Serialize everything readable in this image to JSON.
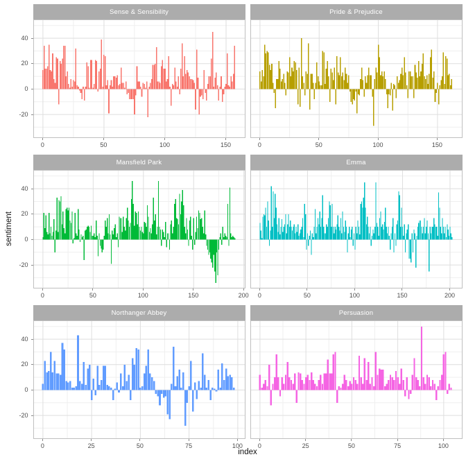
{
  "figure": {
    "x_axis_label": "index",
    "y_axis_label": "sentiment"
  },
  "style": {
    "background": "#FFFFFF",
    "strip_bg": "#ACACAC",
    "strip_text_color": "#FFFFFF",
    "panel_bg": "#FFFFFF",
    "panel_border": "#BFBFBF",
    "grid_major": "#DEDEDE",
    "grid_minor": "#EFEFEF",
    "tick_mark_color": "#8A8A8A",
    "tick_label_color": "#4D4D4D"
  },
  "chart_data": {
    "type": "bar",
    "title": "",
    "xlabel": "index",
    "ylabel": "sentiment",
    "ylim": [
      -38.5,
      54.8
    ],
    "y_ticks": [
      -20,
      0,
      20,
      40
    ],
    "grid": true,
    "legend": false,
    "facet_layout": "3 rows x 2 cols, free x scales, shared y scale",
    "facets": [
      {
        "title": "Sense & Sensibility",
        "color": "#F8766D",
        "x_ticks": [
          0,
          50,
          100,
          150
        ],
        "values": [
          15,
          34,
          16,
          16,
          18,
          35,
          15,
          14,
          28,
          8,
          5,
          25,
          24,
          -12,
          22,
          20,
          24,
          34,
          34,
          10,
          14,
          4,
          1,
          8,
          2,
          7,
          6,
          32,
          3,
          2,
          -1,
          -3,
          -8,
          2,
          -9,
          2,
          21,
          18,
          1,
          23,
          23,
          1,
          4,
          23,
          22,
          -2,
          14,
          16,
          39,
          2,
          27,
          26,
          3,
          7,
          -19,
          3,
          7,
          2,
          10,
          10,
          9,
          11,
          3,
          4,
          17,
          5,
          5,
          1,
          6,
          -4,
          -3,
          -8,
          -8,
          -8,
          -8,
          -20,
          -5,
          18,
          6,
          6,
          2,
          -6,
          5,
          4,
          1,
          6,
          -22,
          2,
          5,
          8,
          19,
          19,
          20,
          33,
          6,
          6,
          5,
          18,
          23,
          16,
          16,
          6,
          8,
          26,
          2,
          -13,
          4,
          3,
          17,
          6,
          2,
          10,
          -4,
          16,
          36,
          10,
          26,
          12,
          15,
          13,
          10,
          8,
          8,
          7,
          5,
          -16,
          31,
          9,
          -20,
          -6,
          -5,
          -8,
          15,
          -3,
          -9,
          4,
          10,
          10,
          24,
          45,
          2,
          9,
          13,
          3,
          -9,
          2,
          10,
          -10,
          -4,
          2,
          4,
          28,
          3,
          2,
          10,
          6,
          12,
          34
        ]
      },
      {
        "title": "Pride & Prejudice",
        "color": "#B79F00",
        "x_ticks": [
          0,
          50,
          100,
          150
        ],
        "values": [
          14,
          6,
          15,
          10,
          35,
          28,
          30,
          29,
          19,
          15,
          20,
          5,
          -3,
          -15,
          8,
          8,
          22,
          16,
          6,
          8,
          12,
          5,
          -5,
          14,
          13,
          25,
          10,
          17,
          14,
          22,
          21,
          15,
          -12,
          17,
          -14,
          40,
          10,
          5,
          -5,
          14,
          12,
          36,
          -16,
          12,
          12,
          5,
          -8,
          5,
          21,
          10,
          6,
          3,
          3,
          30,
          29,
          4,
          16,
          22,
          10,
          -10,
          16,
          13,
          7,
          17,
          -12,
          26,
          13,
          11,
          25,
          10,
          13,
          7,
          17,
          12,
          5,
          11,
          -2,
          -10,
          -12,
          -8,
          -9,
          -2,
          -19,
          -4,
          -5,
          8,
          17,
          7,
          -6,
          10,
          5,
          11,
          17,
          11,
          11,
          -6,
          -29,
          8,
          17,
          13,
          35,
          25,
          11,
          14,
          10,
          14,
          8,
          -4,
          -15,
          -4,
          -5,
          5,
          -17,
          4,
          3,
          -7,
          10,
          5,
          7,
          12,
          17,
          11,
          25,
          13,
          3,
          -7,
          14,
          14,
          10,
          10,
          -7,
          19,
          13,
          9,
          22,
          10,
          14,
          20,
          28,
          10,
          8,
          11,
          4,
          12,
          25,
          31,
          9,
          14,
          -10,
          -3,
          5,
          -12,
          3,
          7,
          10,
          29,
          4,
          26,
          24,
          11,
          12,
          3,
          8
        ]
      },
      {
        "title": "Mansfield Park",
        "color": "#00BA38",
        "x_ticks": [
          0,
          50,
          100,
          150,
          200
        ],
        "values": [
          2,
          21,
          9,
          19,
          6,
          4,
          21,
          5,
          10,
          3,
          6,
          16,
          -10,
          7,
          33,
          6,
          31,
          30,
          34,
          12,
          22,
          9,
          5,
          24,
          25,
          23,
          25,
          15,
          13,
          22,
          -3,
          1,
          21,
          5,
          3,
          24,
          8,
          -2,
          4,
          2,
          3,
          -16,
          7,
          8,
          10,
          11,
          10,
          6,
          11,
          3,
          3,
          5,
          2,
          15,
          3,
          -13,
          5,
          -5,
          -7,
          -10,
          -8,
          3,
          15,
          10,
          17,
          5,
          20,
          4,
          -19,
          7,
          4,
          9,
          12,
          2,
          5,
          -6,
          18,
          17,
          17,
          6,
          18,
          10,
          7,
          17,
          25,
          15,
          10,
          13,
          32,
          46,
          28,
          11,
          22,
          21,
          12,
          22,
          10,
          7,
          10,
          6,
          5,
          14,
          13,
          10,
          27,
          18,
          6,
          9,
          5,
          12,
          33,
          15,
          20,
          4,
          10,
          46,
          10,
          8,
          -5,
          8,
          6,
          2,
          14,
          -6,
          5,
          5,
          -8,
          12,
          15,
          5,
          10,
          28,
          32,
          17,
          16,
          12,
          36,
          20,
          30,
          39,
          27,
          10,
          5,
          17,
          8,
          -5,
          15,
          18,
          3,
          -8,
          17,
          -4,
          6,
          18,
          9,
          23,
          21,
          16,
          17,
          10,
          5,
          23,
          4,
          -5,
          -8,
          -12,
          -10,
          -15,
          -18,
          -22,
          -12,
          -25,
          -34,
          -10,
          -28,
          -8,
          2,
          5,
          -4,
          10,
          2,
          5,
          3,
          2,
          28,
          -5,
          41,
          5,
          2,
          3,
          2,
          1
        ]
      },
      {
        "title": "Emma",
        "color": "#00BFC4",
        "x_ticks": [
          0,
          50,
          100,
          150,
          200
        ],
        "values": [
          13,
          7,
          1,
          18,
          20,
          19,
          25,
          10,
          30,
          15,
          -5,
          7,
          42,
          10,
          38,
          17,
          36,
          25,
          12,
          6,
          17,
          4,
          10,
          16,
          6,
          10,
          12,
          20,
          5,
          12,
          20,
          10,
          15,
          10,
          7,
          10,
          12,
          5,
          10,
          6,
          12,
          3,
          5,
          8,
          10,
          17,
          2,
          28,
          20,
          -8,
          5,
          -5,
          3,
          7,
          -12,
          5,
          2,
          10,
          24,
          5,
          10,
          17,
          12,
          22,
          10,
          17,
          35,
          10,
          5,
          5,
          12,
          10,
          17,
          30,
          27,
          10,
          28,
          10,
          5,
          10,
          8,
          12,
          19,
          10,
          7,
          17,
          5,
          22,
          10,
          6,
          15,
          10,
          -10,
          5,
          10,
          2,
          8,
          10,
          -5,
          5,
          -8,
          10,
          5,
          15,
          10,
          4,
          28,
          30,
          25,
          33,
          45,
          25,
          12,
          18,
          10,
          5,
          10,
          -5,
          3,
          8,
          5,
          10,
          45,
          13,
          10,
          3,
          17,
          22,
          10,
          12,
          8,
          14,
          25,
          10,
          5,
          10,
          3,
          -8,
          5,
          10,
          17,
          -10,
          5,
          -5,
          12,
          15,
          38,
          35,
          10,
          25,
          10,
          3,
          12,
          -10,
          5,
          8,
          12,
          -15,
          -15,
          -18,
          5,
          -10,
          8,
          5,
          -22,
          3,
          10,
          13,
          15,
          15,
          10,
          5,
          10,
          17,
          5,
          10,
          15,
          5,
          -25,
          10,
          5,
          10,
          10,
          17,
          12,
          10,
          10,
          3,
          37,
          25,
          10,
          5,
          17,
          10,
          5,
          10,
          2,
          12,
          8,
          3,
          10,
          5,
          2
        ]
      },
      {
        "title": "Northanger Abbey",
        "color": "#619CFF",
        "x_ticks": [
          0,
          25,
          50,
          75,
          100
        ],
        "values": [
          5,
          23,
          14,
          15,
          30,
          14,
          23,
          13,
          13,
          12,
          37,
          32,
          7,
          6,
          7,
          2,
          2,
          3,
          43,
          7,
          5,
          22,
          4,
          17,
          20,
          -8,
          9,
          -4,
          19,
          4,
          8,
          19,
          19,
          4,
          3,
          2,
          -8,
          1,
          6,
          -2,
          13,
          3,
          20,
          7,
          12,
          -8,
          25,
          20,
          33,
          32,
          2,
          3,
          13,
          19,
          32,
          13,
          10,
          7,
          -3,
          -5,
          -12,
          -3,
          -6,
          -5,
          -19,
          -23,
          5,
          34,
          3,
          11,
          16,
          2,
          14,
          -28,
          -10,
          3,
          23,
          -17,
          6,
          -7,
          7,
          2,
          29,
          12,
          2,
          8,
          -8,
          2,
          1,
          -1,
          16,
          2,
          21,
          8,
          17,
          11,
          12,
          10,
          2
        ]
      },
      {
        "title": "Persuasion",
        "color": "#F564E3",
        "x_ticks": [
          0,
          25,
          50,
          75,
          100
        ],
        "values": [
          12,
          2,
          5,
          8,
          3,
          20,
          -12,
          5,
          10,
          28,
          10,
          -5,
          10,
          5,
          12,
          22,
          10,
          8,
          5,
          13,
          -10,
          14,
          13,
          8,
          5,
          10,
          12,
          8,
          14,
          8,
          5,
          3,
          8,
          12,
          5,
          13,
          13,
          24,
          13,
          13,
          28,
          30,
          -10,
          3,
          2,
          5,
          12,
          8,
          3,
          7,
          5,
          10,
          8,
          5,
          27,
          10,
          5,
          25,
          8,
          22,
          5,
          10,
          3,
          30,
          12,
          17,
          16,
          16,
          3,
          5,
          8,
          12,
          10,
          8,
          15,
          10,
          5,
          17,
          8,
          -5,
          10,
          -7,
          -3,
          12,
          25,
          10,
          8,
          3,
          50,
          10,
          5,
          12,
          10,
          3,
          8,
          5,
          -8,
          3,
          8,
          12,
          28,
          30,
          -3,
          5,
          2
        ]
      }
    ]
  }
}
